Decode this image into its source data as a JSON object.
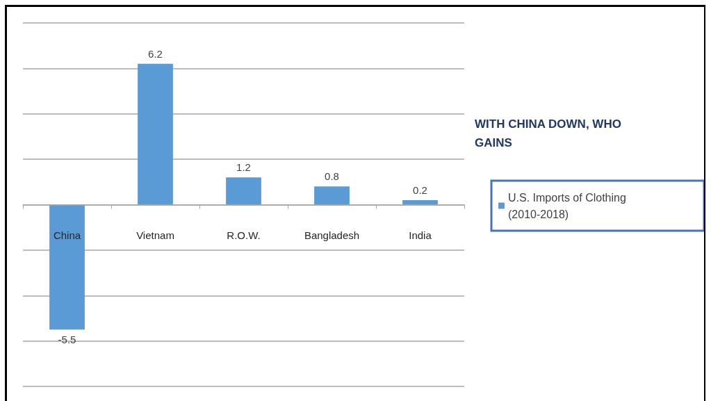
{
  "chart_data": {
    "type": "bar",
    "title": "WITH CHINA DOWN, WHO GAINS",
    "categories": [
      "China",
      "Vietnam",
      "R.O.W.",
      "Bangladesh",
      "India"
    ],
    "series": [
      {
        "name": "U.S. Imports of Clothing (2010-2018)",
        "color": "#5b9bd5",
        "values": [
          -5.5,
          6.2,
          1.2,
          0.8,
          0.2
        ]
      }
    ],
    "ylim": [
      -8,
      8
    ],
    "yticks": [
      {
        "value": -8,
        "label": null
      },
      {
        "value": -6,
        "label": null
      },
      {
        "value": -4,
        "label": null
      },
      {
        "value": -2,
        "label": null
      },
      {
        "value": 0,
        "label": null
      },
      {
        "value": 2,
        "label": null
      },
      {
        "value": 4,
        "label": null
      },
      {
        "value": 6,
        "label": null
      },
      {
        "value": 8,
        "label": null
      }
    ],
    "grid": "y",
    "legend": "right",
    "tick_labels": "x",
    "data_labels": true
  }
}
